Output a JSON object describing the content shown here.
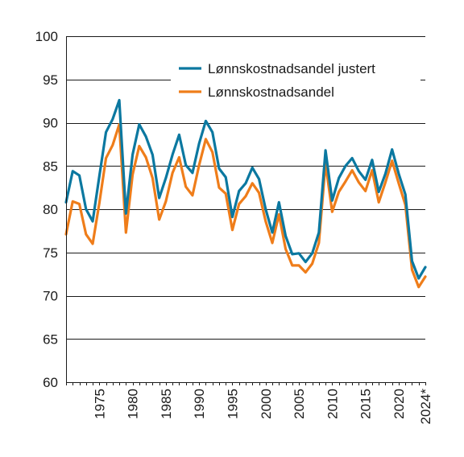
{
  "chart_data": {
    "type": "line",
    "title": "",
    "xlabel": "",
    "ylabel": "",
    "ylim": [
      60,
      100
    ],
    "yticks": [
      "60",
      "65",
      "70",
      "75",
      "80",
      "85",
      "90",
      "95",
      "100"
    ],
    "xticks": [
      {
        "x": 1975,
        "label": "1975"
      },
      {
        "x": 1980,
        "label": "1980"
      },
      {
        "x": 1985,
        "label": "1985"
      },
      {
        "x": 1990,
        "label": "1990"
      },
      {
        "x": 1995,
        "label": "1995"
      },
      {
        "x": 2000,
        "label": "2000"
      },
      {
        "x": 2005,
        "label": "2005"
      },
      {
        "x": 2010,
        "label": "2010"
      },
      {
        "x": 2015,
        "label": "2015"
      },
      {
        "x": 2020,
        "label": "2020"
      },
      {
        "x": 2024,
        "label": "2024*"
      }
    ],
    "xlim": [
      1970,
      2024
    ],
    "grid": true,
    "legend_position": "top-right",
    "x": [
      1970,
      1971,
      1972,
      1973,
      1974,
      1975,
      1976,
      1977,
      1978,
      1979,
      1980,
      1981,
      1982,
      1983,
      1984,
      1985,
      1986,
      1987,
      1988,
      1989,
      1990,
      1991,
      1992,
      1993,
      1994,
      1995,
      1996,
      1997,
      1998,
      1999,
      2000,
      2001,
      2002,
      2003,
      2004,
      2005,
      2006,
      2007,
      2008,
      2009,
      2010,
      2011,
      2012,
      2013,
      2014,
      2015,
      2016,
      2017,
      2018,
      2019,
      2020,
      2021,
      2022,
      2023,
      2024
    ],
    "series": [
      {
        "name": "Lønnskostnadsandel justert",
        "color": "#0b78a0",
        "values": [
          80.8,
          84.4,
          83.9,
          80.0,
          78.6,
          83.8,
          88.9,
          90.4,
          92.6,
          79.5,
          86.3,
          89.8,
          88.4,
          86.3,
          81.3,
          83.6,
          86.3,
          88.6,
          85.1,
          84.2,
          87.6,
          90.2,
          88.9,
          84.7,
          83.7,
          79.1,
          82.1,
          83.0,
          84.8,
          83.5,
          80.0,
          77.3,
          80.8,
          76.9,
          74.8,
          74.9,
          73.9,
          74.9,
          77.3,
          86.8,
          81.0,
          83.6,
          85.0,
          85.9,
          84.4,
          83.4,
          85.7,
          82.0,
          84.1,
          86.9,
          84.1,
          81.7,
          74.0,
          72.0,
          73.3
        ]
      },
      {
        "name": "Lønnskostnadsandel",
        "color": "#ef7d1a",
        "values": [
          77.1,
          80.9,
          80.6,
          77.1,
          76.0,
          80.7,
          85.9,
          87.4,
          89.8,
          77.3,
          84.0,
          87.3,
          86.0,
          83.6,
          78.8,
          80.9,
          84.2,
          86.0,
          82.6,
          81.6,
          85.1,
          88.1,
          86.6,
          82.5,
          81.8,
          77.6,
          80.6,
          81.5,
          83.0,
          81.9,
          78.6,
          76.1,
          79.4,
          75.4,
          73.5,
          73.5,
          72.7,
          73.7,
          76.1,
          85.3,
          79.7,
          82.0,
          83.2,
          84.5,
          83.1,
          82.1,
          84.5,
          80.8,
          83.1,
          85.6,
          83.0,
          80.5,
          73.0,
          71.0,
          72.2
        ]
      }
    ]
  }
}
